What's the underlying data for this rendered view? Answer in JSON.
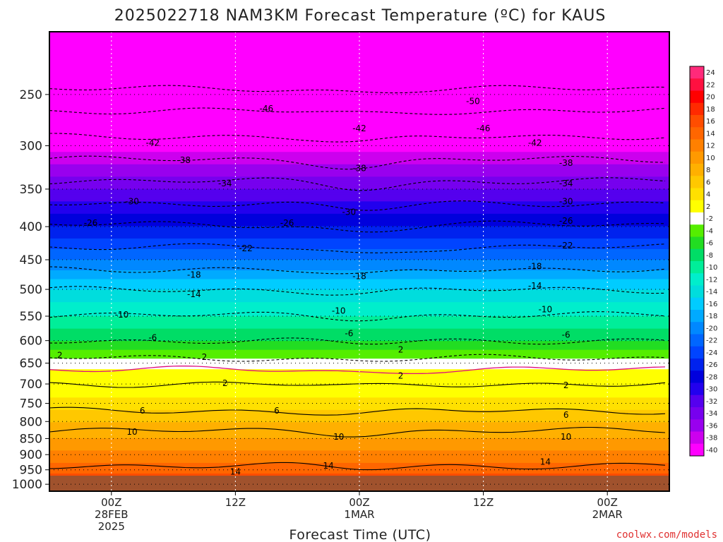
{
  "chart_data": {
    "type": "heatmap",
    "title": "2025022718 NAM3KM Forecast Temperature (ºC) for KAUS",
    "xlabel": "Forecast Time (UTC)",
    "ylabel": "",
    "credit": "coolwx.com/models",
    "y_axis": {
      "unit": "hPa",
      "scale": "log-pressure",
      "range": [
        200,
        1025
      ],
      "ticks": [
        250,
        300,
        350,
        400,
        450,
        500,
        550,
        600,
        650,
        700,
        750,
        800,
        850,
        900,
        950,
        1000
      ]
    },
    "x_axis": {
      "range_hours": [
        -6,
        54
      ],
      "ticks": [
        {
          "hour": 0,
          "lines": [
            "00Z",
            "28FEB",
            "2025"
          ]
        },
        {
          "hour": 12,
          "lines": [
            "12Z"
          ]
        },
        {
          "hour": 24,
          "lines": [
            "00Z",
            "1MAR"
          ]
        },
        {
          "hour": 36,
          "lines": [
            "12Z"
          ]
        },
        {
          "hour": 48,
          "lines": [
            "00Z",
            "2MAR"
          ]
        }
      ]
    },
    "colorbar": {
      "labels": [
        24,
        22,
        20,
        18,
        16,
        14,
        12,
        10,
        8,
        6,
        4,
        2,
        -2,
        -4,
        -6,
        -8,
        -10,
        -12,
        -14,
        -16,
        -18,
        -20,
        -22,
        -24,
        -26,
        -28,
        -30,
        -32,
        -34,
        -36,
        -38,
        -40
      ],
      "colors": [
        "#ff2a7a",
        "#ff1040",
        "#ff0000",
        "#ff2a00",
        "#ff4d00",
        "#ff6600",
        "#ff8000",
        "#ff9900",
        "#ffb000",
        "#ffc800",
        "#ffe000",
        "#ffff00",
        "#ffffff",
        "#55ee00",
        "#22dd22",
        "#00dd66",
        "#00ee99",
        "#00eecc",
        "#00dddd",
        "#00ccff",
        "#00aaff",
        "#0088ff",
        "#0066ff",
        "#0044ff",
        "#0022ee",
        "#0000dd",
        "#2200ee",
        "#5500ee",
        "#7700ee",
        "#9900ee",
        "#cc00ee",
        "#ff00ff"
      ]
    },
    "temperature_levels": [
      {
        "p": 1000,
        "t": 18
      },
      {
        "p": 950,
        "t": 15.5
      },
      {
        "p": 900,
        "t": 12.5
      },
      {
        "p": 850,
        "t": 10
      },
      {
        "p": 800,
        "t": 8
      },
      {
        "p": 750,
        "t": 5
      },
      {
        "p": 700,
        "t": 2
      },
      {
        "p": 650,
        "t": -1
      },
      {
        "p": 600,
        "t": -6
      },
      {
        "p": 550,
        "t": -10
      },
      {
        "p": 500,
        "t": -14
      },
      {
        "p": 450,
        "t": -20
      },
      {
        "p": 400,
        "t": -26
      },
      {
        "p": 350,
        "t": -32
      },
      {
        "p": 300,
        "t": -39
      },
      {
        "p": 250,
        "t": -46
      },
      {
        "p": 200,
        "t": -52
      }
    ],
    "contours": [
      {
        "value": 14,
        "p": 936
      },
      {
        "value": 10,
        "p": 827
      },
      {
        "value": 6,
        "p": 770
      },
      {
        "value": 2,
        "p": 700
      },
      {
        "value": 0,
        "p": 665
      },
      {
        "value": -2,
        "p": 638
      },
      {
        "value": -6,
        "p": 600
      },
      {
        "value": -10,
        "p": 548
      },
      {
        "value": -14,
        "p": 501
      },
      {
        "value": -18,
        "p": 465
      },
      {
        "value": -22,
        "p": 430
      },
      {
        "value": -26,
        "p": 397
      },
      {
        "value": -30,
        "p": 368
      },
      {
        "value": -34,
        "p": 340
      },
      {
        "value": -38,
        "p": 315
      },
      {
        "value": -42,
        "p": 290
      },
      {
        "value": -46,
        "p": 265
      },
      {
        "value": -50,
        "p": 245
      }
    ],
    "contour_labels": [
      {
        "value": "14",
        "hour": 21,
        "p": 936
      },
      {
        "value": "14",
        "hour": 12,
        "p": 957
      },
      {
        "value": "14",
        "hour": 42,
        "p": 924
      },
      {
        "value": "10",
        "hour": 2,
        "p": 830
      },
      {
        "value": "10",
        "hour": 22,
        "p": 845
      },
      {
        "value": "10",
        "hour": 44,
        "p": 845
      },
      {
        "value": "6",
        "hour": 3,
        "p": 770
      },
      {
        "value": "6",
        "hour": 16,
        "p": 770
      },
      {
        "value": "6",
        "hour": 44,
        "p": 782
      },
      {
        "value": "2",
        "hour": 11,
        "p": 698
      },
      {
        "value": "2",
        "hour": 28,
        "p": 680
      },
      {
        "value": "2",
        "hour": 44,
        "p": 703
      },
      {
        "value": "2",
        "hour": -5,
        "p": 632
      },
      {
        "value": "2",
        "hour": 9,
        "p": 636
      },
      {
        "value": "2",
        "hour": 28,
        "p": 620
      },
      {
        "value": "-6",
        "hour": 4,
        "p": 594
      },
      {
        "value": "-6",
        "hour": 23,
        "p": 585
      },
      {
        "value": "-6",
        "hour": 44,
        "p": 588
      },
      {
        "value": "-10",
        "hour": 1,
        "p": 547
      },
      {
        "value": "-10",
        "hour": 22,
        "p": 540
      },
      {
        "value": "-10",
        "hour": 42,
        "p": 537
      },
      {
        "value": "-14",
        "hour": 8,
        "p": 509
      },
      {
        "value": "-14",
        "hour": 41,
        "p": 494
      },
      {
        "value": "-18",
        "hour": 8,
        "p": 475
      },
      {
        "value": "-18",
        "hour": 24,
        "p": 477
      },
      {
        "value": "-18",
        "hour": 41,
        "p": 461
      },
      {
        "value": "-22",
        "hour": 13,
        "p": 432
      },
      {
        "value": "-22",
        "hour": 44,
        "p": 428
      },
      {
        "value": "-26",
        "hour": -2,
        "p": 395
      },
      {
        "value": "-26",
        "hour": 17,
        "p": 395
      },
      {
        "value": "-26",
        "hour": 44,
        "p": 392
      },
      {
        "value": "-30",
        "hour": 2,
        "p": 366
      },
      {
        "value": "-30",
        "hour": 23,
        "p": 380
      },
      {
        "value": "-30",
        "hour": 44,
        "p": 366
      },
      {
        "value": "-34",
        "hour": 11,
        "p": 343
      },
      {
        "value": "-34",
        "hour": 44,
        "p": 343
      },
      {
        "value": "-38",
        "hour": 7,
        "p": 316
      },
      {
        "value": "-38",
        "hour": 24,
        "p": 325
      },
      {
        "value": "-38",
        "hour": 44,
        "p": 319
      },
      {
        "value": "-42",
        "hour": 4,
        "p": 297
      },
      {
        "value": "-42",
        "hour": 24,
        "p": 282
      },
      {
        "value": "-42",
        "hour": 41,
        "p": 297
      },
      {
        "value": "-46",
        "hour": 15,
        "p": 263
      },
      {
        "value": "-46",
        "hour": 36,
        "p": 282
      },
      {
        "value": "-50",
        "hour": 35,
        "p": 256
      }
    ],
    "ground_color": "#a0522d",
    "grid": true
  }
}
